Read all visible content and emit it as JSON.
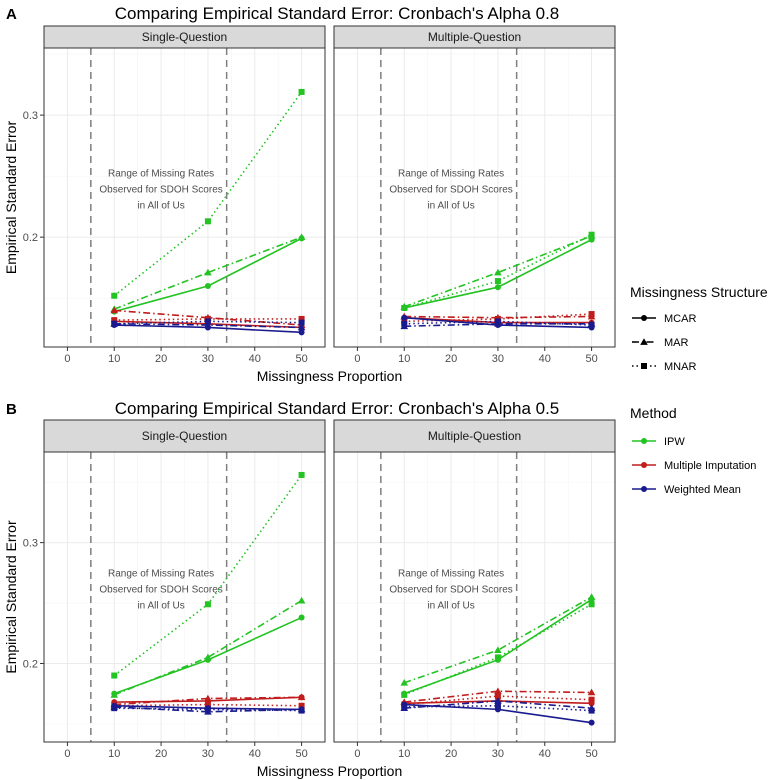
{
  "chart_data": [
    {
      "tag": "A",
      "title": "Comparing Empirical Standard Error: Cronbach's Alpha 0.8",
      "xlabel": "Missingness Proportion",
      "ylabel": "Empirical Standard Error",
      "type": "line",
      "xlim": [
        -5,
        55
      ],
      "ylim": [
        0.11,
        0.355
      ],
      "xticks": [
        0,
        10,
        20,
        30,
        40,
        50
      ],
      "yticks": [
        0.2,
        0.3
      ],
      "reference_lines_x": [
        5,
        34
      ],
      "annotation": [
        "Range of Missing Rates",
        "Observed for SDOH Scores",
        "in All of Us"
      ],
      "x": [
        10,
        30,
        50
      ],
      "panels": [
        {
          "name": "Single-Question",
          "series": [
            {
              "method": "IPW",
              "structure": "MCAR",
              "values": [
                0.139,
                0.16,
                0.199
              ]
            },
            {
              "method": "IPW",
              "structure": "MAR",
              "values": [
                0.141,
                0.171,
                0.2
              ]
            },
            {
              "method": "IPW",
              "structure": "MNAR",
              "values": [
                0.152,
                0.213,
                0.319
              ]
            },
            {
              "method": "Multiple Imputation",
              "structure": "MCAR",
              "values": [
                0.131,
                0.129,
                0.126
              ]
            },
            {
              "method": "Multiple Imputation",
              "structure": "MAR",
              "values": [
                0.14,
                0.134,
                0.128
              ]
            },
            {
              "method": "Multiple Imputation",
              "structure": "MNAR",
              "values": [
                0.132,
                0.133,
                0.133
              ]
            },
            {
              "method": "Weighted Mean",
              "structure": "MCAR",
              "values": [
                0.128,
                0.126,
                0.122
              ]
            },
            {
              "method": "Weighted Mean",
              "structure": "MAR",
              "values": [
                0.129,
                0.128,
                0.126
              ]
            },
            {
              "method": "Weighted Mean",
              "structure": "MNAR",
              "values": [
                0.129,
                0.131,
                0.13
              ]
            }
          ]
        },
        {
          "name": "Multiple-Question",
          "series": [
            {
              "method": "IPW",
              "structure": "MCAR",
              "values": [
                0.142,
                0.159,
                0.198
              ]
            },
            {
              "method": "IPW",
              "structure": "MAR",
              "values": [
                0.143,
                0.171,
                0.201
              ]
            },
            {
              "method": "IPW",
              "structure": "MNAR",
              "values": [
                0.142,
                0.164,
                0.202
              ]
            },
            {
              "method": "Multiple Imputation",
              "structure": "MCAR",
              "values": [
                0.134,
                0.13,
                0.13
              ]
            },
            {
              "method": "Multiple Imputation",
              "structure": "MAR",
              "values": [
                0.135,
                0.134,
                0.135
              ]
            },
            {
              "method": "Multiple Imputation",
              "structure": "MNAR",
              "values": [
                0.131,
                0.133,
                0.137
              ]
            },
            {
              "method": "Weighted Mean",
              "structure": "MCAR",
              "values": [
                0.134,
                0.128,
                0.126
              ]
            },
            {
              "method": "Weighted Mean",
              "structure": "MAR",
              "values": [
                0.127,
                0.129,
                0.129
              ]
            },
            {
              "method": "Weighted Mean",
              "structure": "MNAR",
              "values": [
                0.129,
                0.131,
                0.128
              ]
            }
          ]
        }
      ]
    },
    {
      "tag": "B",
      "title": "Comparing Empirical Standard Error: Cronbach's Alpha 0.5",
      "xlabel": "Missingness Proportion",
      "ylabel": "Empirical Standard Error",
      "type": "line",
      "xlim": [
        -5,
        55
      ],
      "ylim": [
        0.135,
        0.375
      ],
      "xticks": [
        0,
        10,
        20,
        30,
        40,
        50
      ],
      "yticks": [
        0.2,
        0.3
      ],
      "reference_lines_x": [
        5,
        34
      ],
      "annotation": [
        "Range of Missing Rates",
        "Observed for SDOH Scores",
        "in All of Us"
      ],
      "x": [
        10,
        30,
        50
      ],
      "panels": [
        {
          "name": "Single-Question",
          "series": [
            {
              "method": "IPW",
              "structure": "MCAR",
              "values": [
                0.175,
                0.203,
                0.238
              ]
            },
            {
              "method": "IPW",
              "structure": "MAR",
              "values": [
                0.174,
                0.205,
                0.252
              ]
            },
            {
              "method": "IPW",
              "structure": "MNAR",
              "values": [
                0.19,
                0.249,
                0.356
              ]
            },
            {
              "method": "Multiple Imputation",
              "structure": "MCAR",
              "values": [
                0.168,
                0.169,
                0.172
              ]
            },
            {
              "method": "Multiple Imputation",
              "structure": "MAR",
              "values": [
                0.166,
                0.171,
                0.172
              ]
            },
            {
              "method": "Multiple Imputation",
              "structure": "MNAR",
              "values": [
                0.165,
                0.166,
                0.165
              ]
            },
            {
              "method": "Weighted Mean",
              "structure": "MCAR",
              "values": [
                0.165,
                0.163,
                0.162
              ]
            },
            {
              "method": "Weighted Mean",
              "structure": "MAR",
              "values": [
                0.164,
                0.16,
                0.162
              ]
            },
            {
              "method": "Weighted Mean",
              "structure": "MNAR",
              "values": [
                0.163,
                0.162,
                0.161
              ]
            }
          ]
        },
        {
          "name": "Multiple-Question",
          "series": [
            {
              "method": "IPW",
              "structure": "MCAR",
              "values": [
                0.175,
                0.203,
                0.253
              ]
            },
            {
              "method": "IPW",
              "structure": "MAR",
              "values": [
                0.184,
                0.211,
                0.255
              ]
            },
            {
              "method": "IPW",
              "structure": "MNAR",
              "values": [
                0.174,
                0.205,
                0.249
              ]
            },
            {
              "method": "Multiple Imputation",
              "structure": "MCAR",
              "values": [
                0.167,
                0.169,
                0.167
              ]
            },
            {
              "method": "Multiple Imputation",
              "structure": "MAR",
              "values": [
                0.168,
                0.177,
                0.176
              ]
            },
            {
              "method": "Multiple Imputation",
              "structure": "MNAR",
              "values": [
                0.166,
                0.173,
                0.17
              ]
            },
            {
              "method": "Weighted Mean",
              "structure": "MCAR",
              "values": [
                0.166,
                0.162,
                0.151
              ]
            },
            {
              "method": "Weighted Mean",
              "structure": "MAR",
              "values": [
                0.163,
                0.169,
                0.163
              ]
            },
            {
              "method": "Weighted Mean",
              "structure": "MNAR",
              "values": [
                0.164,
                0.165,
                0.161
              ]
            }
          ]
        }
      ]
    }
  ],
  "legend": {
    "structure_title": "Missingness Structure",
    "structure_items": [
      "MCAR",
      "MAR",
      "MNAR"
    ],
    "method_title": "Method",
    "method_items": [
      "IPW",
      "Multiple Imputation",
      "Weighted Mean"
    ]
  },
  "colors": {
    "IPW": "#22c322",
    "Multiple Imputation": "#c11d1d",
    "Weighted Mean": "#1a1a8f"
  },
  "dash_patterns": {
    "MCAR": "",
    "MAR": "7 3 1.5 3",
    "MNAR": "1.5 3"
  },
  "markers": {
    "MCAR": "circle",
    "MAR": "triangle",
    "MNAR": "square"
  }
}
